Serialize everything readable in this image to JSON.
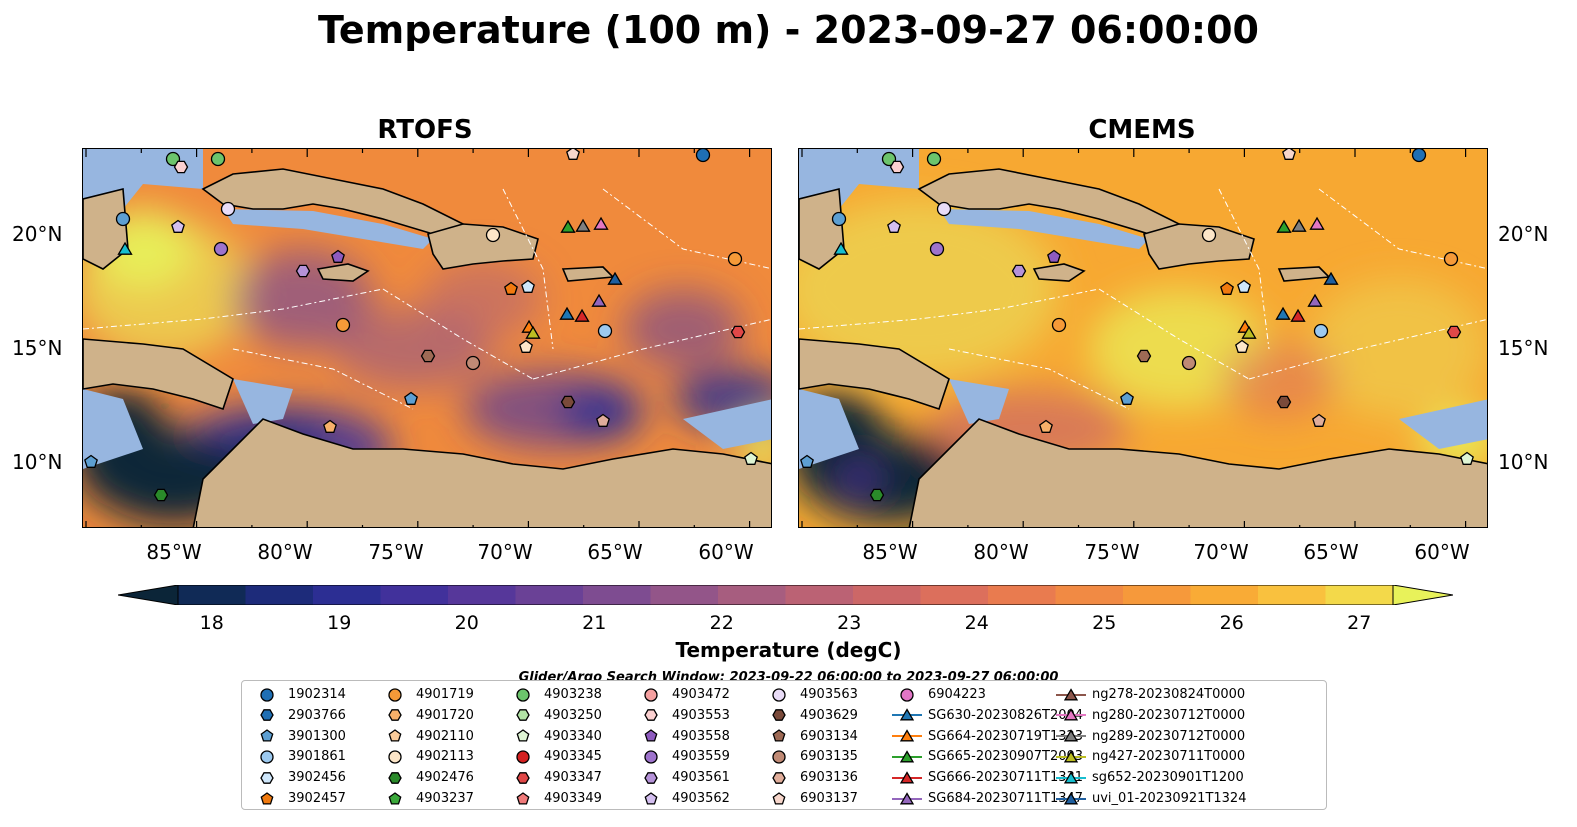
{
  "title": "Temperature (100 m) - 2023-09-27 06:00:00",
  "panels": [
    {
      "title": "RTOFS",
      "ocean": "#f08a3c"
    },
    {
      "title": "CMEMS",
      "ocean": "#f7a832"
    }
  ],
  "lat_ticks": [
    "20°N",
    "15°N",
    "10°N"
  ],
  "lon_ticks": [
    "85°W",
    "80°W",
    "75°W",
    "70°W",
    "65°W",
    "60°W"
  ],
  "colorbar": {
    "label": "Temperature (degC)",
    "ticks": [
      "18",
      "19",
      "20",
      "21",
      "22",
      "23",
      "24",
      "25",
      "26",
      "27"
    ],
    "range": [
      18,
      27
    ],
    "colors": [
      "#0b2538",
      "#102a56",
      "#1d2b7a",
      "#2c2e93",
      "#41319b",
      "#56379a",
      "#6a4196",
      "#7e4c91",
      "#935589",
      "#a75d7f",
      "#bb6274",
      "#cc6767",
      "#dc6f5c",
      "#e97b4f",
      "#f18a44",
      "#f6993b",
      "#f9ab36",
      "#f9c13e",
      "#f3d94a",
      "#e8f25a"
    ]
  },
  "search_window": "Glider/Argo Search Window: 2023-09-22 06:00:00 to 2023-09-27 06:00:00",
  "legend": [
    [
      "1902314",
      "circle",
      "#1f6fb4"
    ],
    [
      "2903766",
      "hexagon",
      "#1f6fb4"
    ],
    [
      "3901300",
      "pentagon",
      "#5d9fd2"
    ],
    [
      "3901861",
      "circle",
      "#9cc9ef"
    ],
    [
      "3902456",
      "hexagon",
      "#cfe7fb"
    ],
    [
      "3902457",
      "pentagon",
      "#f17a0f"
    ],
    [
      "4901719",
      "circle",
      "#f59a38"
    ],
    [
      "4901720",
      "hexagon",
      "#f8b16a"
    ],
    [
      "4902110",
      "pentagon",
      "#fbcc9a"
    ],
    [
      "4902113",
      "circle",
      "#fde6c8"
    ],
    [
      "4902476",
      "hexagon",
      "#2a8a2a"
    ],
    [
      "4903237",
      "pentagon",
      "#3aa83a"
    ],
    [
      "4903238",
      "circle",
      "#6cc46c"
    ],
    [
      "4903250",
      "hexagon",
      "#b2e3a5"
    ],
    [
      "4903340",
      "pentagon",
      "#dff5d4"
    ],
    [
      "4903345",
      "circle",
      "#d42020"
    ],
    [
      "4903347",
      "hexagon",
      "#e04848"
    ],
    [
      "4903349",
      "pentagon",
      "#f07a7a"
    ],
    [
      "4903472",
      "circle",
      "#f5a0a0"
    ],
    [
      "4903553",
      "hexagon",
      "#fbd0d0"
    ],
    [
      "4903558",
      "pentagon",
      "#8e5bbf"
    ],
    [
      "4903559",
      "circle",
      "#9e73cc"
    ],
    [
      "4903561",
      "hexagon",
      "#b592d8"
    ],
    [
      "4903562",
      "pentagon",
      "#d4bff0"
    ],
    [
      "4903563",
      "circle",
      "#e9dcf7"
    ],
    [
      "4903629",
      "hexagon",
      "#7a4a3a"
    ],
    [
      "6903134",
      "pentagon",
      "#9e6a55"
    ],
    [
      "6903135",
      "circle",
      "#c08a75"
    ],
    [
      "6903136",
      "hexagon",
      "#e0ad9a"
    ],
    [
      "6903137",
      "pentagon",
      "#f7d6cb"
    ],
    [
      "6904223",
      "circle",
      "#e176c6"
    ],
    [
      "SG630-20230826T2004",
      "triangle-line",
      "#1f77b4"
    ],
    [
      "SG664-20230719T1323",
      "triangle-line",
      "#ff7f0e"
    ],
    [
      "SG665-20230907T2003",
      "triangle-line",
      "#2ca02c"
    ],
    [
      "SG666-20230711T1331",
      "triangle-line",
      "#d62728"
    ],
    [
      "SG684-20230711T1347",
      "triangle-line",
      "#9467bd"
    ],
    [
      "ng278-20230824T0000",
      "triangle-line",
      "#8c564b"
    ],
    [
      "ng280-20230712T0000",
      "triangle-line",
      "#e377c2"
    ],
    [
      "ng289-20230712T0000",
      "triangle-line",
      "#7f7f7f"
    ],
    [
      "ng427-20230711T0000",
      "triangle-line",
      "#bcbd22"
    ],
    [
      "sg652-20230901T1200",
      "triangle-line",
      "#17becf"
    ],
    [
      "uvi_01-20230921T1324",
      "triangle-line",
      "#1f5f9f"
    ]
  ]
}
